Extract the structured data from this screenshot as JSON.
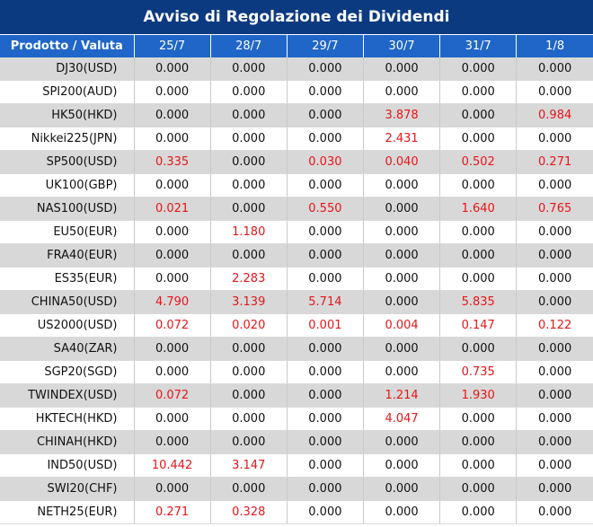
{
  "title": "Avviso di Regolazione dei Dividendi",
  "header": {
    "product": "Prodotto / Valuta",
    "dates": [
      "25/7",
      "28/7",
      "29/7",
      "30/7",
      "31/7",
      "1/8"
    ]
  },
  "colors": {
    "title_bg": "#0c3a80",
    "header_bg": "#1f66c8",
    "highlight": "#e8151a",
    "shade": "#d8d8d8"
  },
  "rows": [
    {
      "product": "DJ30(USD)",
      "values": [
        "0.000",
        "0.000",
        "0.000",
        "0.000",
        "0.000",
        "0.000"
      ]
    },
    {
      "product": "SPI200(AUD)",
      "values": [
        "0.000",
        "0.000",
        "0.000",
        "0.000",
        "0.000",
        "0.000"
      ]
    },
    {
      "product": "HK50(HKD)",
      "values": [
        "0.000",
        "0.000",
        "0.000",
        "3.878",
        "0.000",
        "0.984"
      ]
    },
    {
      "product": "Nikkei225(JPN)",
      "values": [
        "0.000",
        "0.000",
        "0.000",
        "2.431",
        "0.000",
        "0.000"
      ]
    },
    {
      "product": "SP500(USD)",
      "values": [
        "0.335",
        "0.000",
        "0.030",
        "0.040",
        "0.502",
        "0.271"
      ]
    },
    {
      "product": "UK100(GBP)",
      "values": [
        "0.000",
        "0.000",
        "0.000",
        "0.000",
        "0.000",
        "0.000"
      ]
    },
    {
      "product": "NAS100(USD)",
      "values": [
        "0.021",
        "0.000",
        "0.550",
        "0.000",
        "1.640",
        "0.765"
      ]
    },
    {
      "product": "EU50(EUR)",
      "values": [
        "0.000",
        "1.180",
        "0.000",
        "0.000",
        "0.000",
        "0.000"
      ]
    },
    {
      "product": "FRA40(EUR)",
      "values": [
        "0.000",
        "0.000",
        "0.000",
        "0.000",
        "0.000",
        "0.000"
      ]
    },
    {
      "product": "ES35(EUR)",
      "values": [
        "0.000",
        "2.283",
        "0.000",
        "0.000",
        "0.000",
        "0.000"
      ]
    },
    {
      "product": "CHINA50(USD)",
      "values": [
        "4.790",
        "3.139",
        "5.714",
        "0.000",
        "5.835",
        "0.000"
      ]
    },
    {
      "product": "US2000(USD)",
      "values": [
        "0.072",
        "0.020",
        "0.001",
        "0.004",
        "0.147",
        "0.122"
      ]
    },
    {
      "product": "SA40(ZAR)",
      "values": [
        "0.000",
        "0.000",
        "0.000",
        "0.000",
        "0.000",
        "0.000"
      ]
    },
    {
      "product": "SGP20(SGD)",
      "values": [
        "0.000",
        "0.000",
        "0.000",
        "0.000",
        "0.735",
        "0.000"
      ]
    },
    {
      "product": "TWINDEX(USD)",
      "values": [
        "0.072",
        "0.000",
        "0.000",
        "1.214",
        "1.930",
        "0.000"
      ]
    },
    {
      "product": "HKTECH(HKD)",
      "values": [
        "0.000",
        "0.000",
        "0.000",
        "4.047",
        "0.000",
        "0.000"
      ]
    },
    {
      "product": "CHINAH(HKD)",
      "values": [
        "0.000",
        "0.000",
        "0.000",
        "0.000",
        "0.000",
        "0.000"
      ]
    },
    {
      "product": "IND50(USD)",
      "values": [
        "10.442",
        "3.147",
        "0.000",
        "0.000",
        "0.000",
        "0.000"
      ]
    },
    {
      "product": "SWI20(CHF)",
      "values": [
        "0.000",
        "0.000",
        "0.000",
        "0.000",
        "0.000",
        "0.000"
      ]
    },
    {
      "product": "NETH25(EUR)",
      "values": [
        "0.271",
        "0.328",
        "0.000",
        "0.000",
        "0.000",
        "0.000"
      ]
    }
  ]
}
